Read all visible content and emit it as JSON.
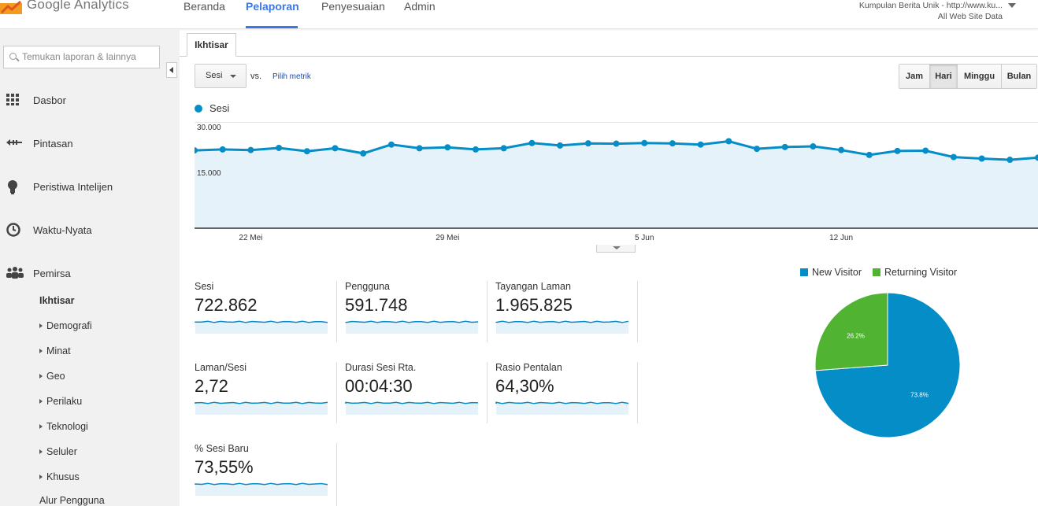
{
  "app": {
    "logo_google": "Google",
    "logo_product": "Analytics"
  },
  "topnav": [
    "Beranda",
    "Pelaporan",
    "Penyesuaian",
    "Admin"
  ],
  "account": {
    "name": "Kumpulan Berita Unik - http://www.ku...",
    "view": "All Web Site Data"
  },
  "sidebar": {
    "search_placeholder": "Temukan laporan & lainnya",
    "items": [
      "Dasbor",
      "Pintasan",
      "Peristiwa Intelijen",
      "Waktu-Nyata",
      "Pemirsa"
    ],
    "subitems": [
      "Ikhtisar",
      "Demografi",
      "Minat",
      "Geo",
      "Perilaku",
      "Teknologi",
      "Seluler",
      "Khusus",
      "Alur Pengguna"
    ]
  },
  "main": {
    "tab": "Ikhtisar",
    "metric_select": "Sesi",
    "vs": "vs.",
    "pick_metric": "Pilih metrik",
    "granularity": [
      "Jam",
      "Hari",
      "Minggu",
      "Bulan"
    ],
    "granularity_active": "Hari"
  },
  "chart_data": {
    "type": "area",
    "legend": "Sesi",
    "color": "#058dc7",
    "y_ticks": [
      "30.000",
      "15.000"
    ],
    "ylim": [
      0,
      30000
    ],
    "x_labels": [
      "22 Mei",
      "29 Mei",
      "5 Jun",
      "12 Jun"
    ],
    "x_label_indices": [
      2,
      9,
      16,
      23
    ],
    "values": [
      23000,
      23300,
      23100,
      23800,
      22700,
      23700,
      22000,
      24900,
      23700,
      24000,
      23300,
      23700,
      25400,
      24600,
      25300,
      25200,
      25400,
      25300,
      24900,
      26000,
      23500,
      24100,
      24300,
      23100,
      21500,
      22800,
      22900,
      20800,
      20300,
      19900,
      20600
    ]
  },
  "metrics": [
    {
      "label": "Sesi",
      "value": "722.862"
    },
    {
      "label": "Pengguna",
      "value": "591.748"
    },
    {
      "label": "Tayangan Laman",
      "value": "1.965.825"
    },
    {
      "label": "Laman/Sesi",
      "value": "2,72"
    },
    {
      "label": "Durasi Sesi Rta.",
      "value": "00:04:30"
    },
    {
      "label": "Rasio Pentalan",
      "value": "64,30%"
    },
    {
      "label": "% Sesi Baru",
      "value": "73,55%"
    }
  ],
  "pie": {
    "type": "pie",
    "series": [
      {
        "name": "New Visitor",
        "value": 73.8,
        "label": "73.8%",
        "color": "#058dc7"
      },
      {
        "name": "Returning Visitor",
        "value": 26.2,
        "label": "26.2%",
        "color": "#50b432"
      }
    ]
  }
}
